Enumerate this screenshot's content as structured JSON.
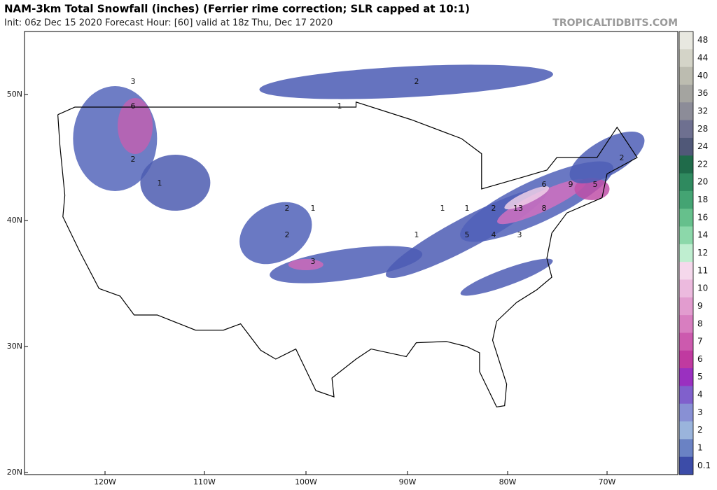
{
  "header": {
    "title": "NAM-3km Total Snowfall (inches) (Ferrier rime correction; SLR capped at 10:1)",
    "subtitle": "Init: 06z Dec 15 2020   Forecast Hour: [60]   valid at 18z Thu, Dec 17 2020",
    "watermark": "TROPICALTIDBITS.COM"
  },
  "map": {
    "lat_labels": [
      "50N",
      "40N",
      "30N",
      "20N"
    ],
    "lon_labels": [
      "120W",
      "110W",
      "100W",
      "90W",
      "80W",
      "70W"
    ],
    "annotations": [
      "3",
      "6",
      "2",
      "1",
      "2",
      "1",
      "2",
      "3",
      "2",
      "1",
      "1",
      "1",
      "2",
      "13",
      "8",
      "6",
      "9",
      "5",
      "2",
      "1",
      "5",
      "4",
      "3"
    ]
  },
  "colorbar": {
    "ticks": [
      48,
      44,
      40,
      36,
      32,
      28,
      24,
      22,
      20,
      18,
      16,
      14,
      12,
      11,
      10,
      9,
      8,
      7,
      6,
      5,
      4,
      3,
      2,
      1,
      0.1
    ],
    "colors": [
      "#e8e8e0",
      "#d4d4c8",
      "#bcbcb0",
      "#a4a4a0",
      "#8c8c98",
      "#6e7090",
      "#505878",
      "#1f6b4a",
      "#2f8a5f",
      "#44a473",
      "#66c08c",
      "#8cd8aa",
      "#bfeed0",
      "#f5d8ec",
      "#ecbade",
      "#e29ccf",
      "#d87ec0",
      "#cc5aae",
      "#c03aa0",
      "#9a30c0",
      "#8060cc",
      "#8890d4",
      "#9ab4dc",
      "#6a82c4",
      "#3c4ca8"
    ]
  }
}
